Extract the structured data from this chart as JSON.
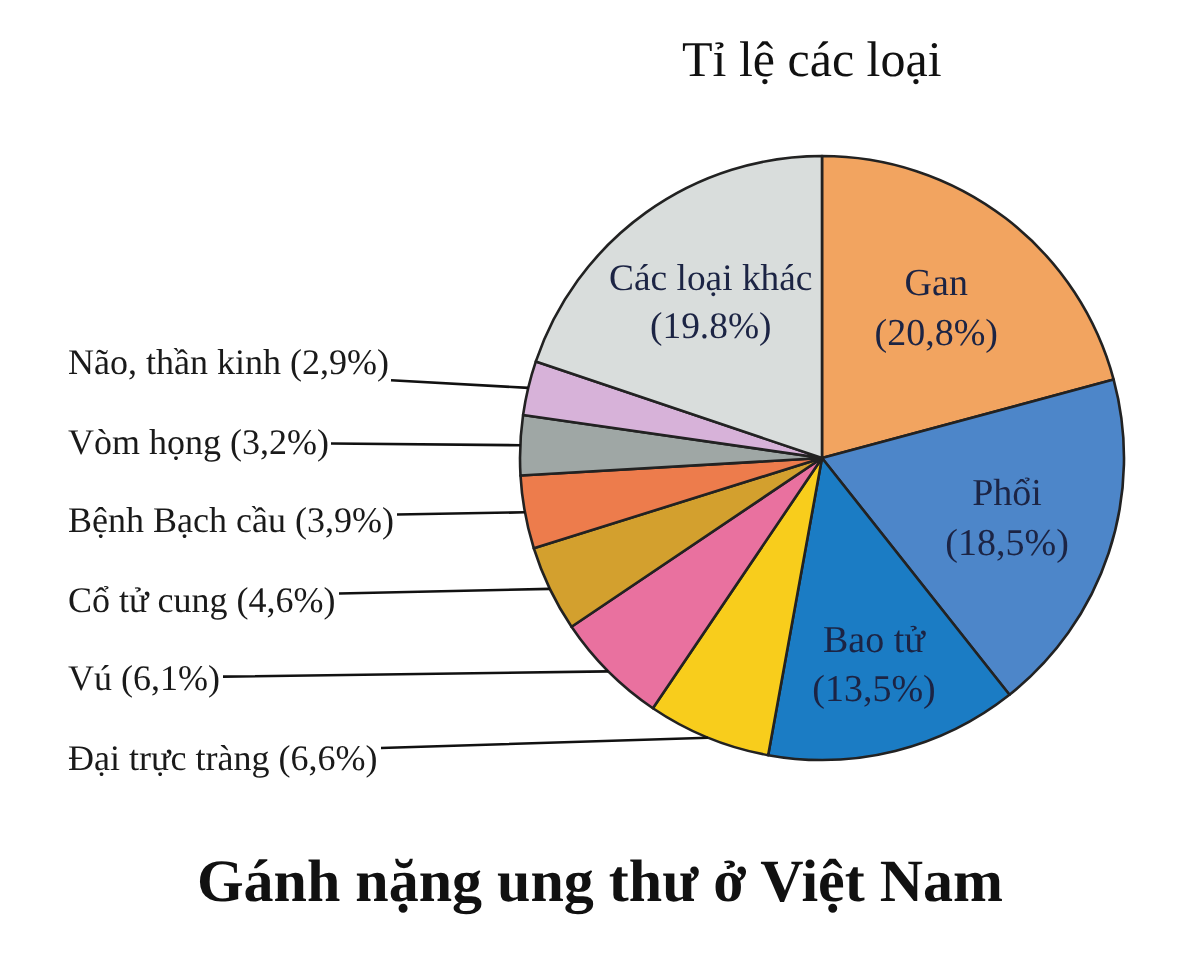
{
  "chart_data": {
    "type": "pie",
    "title": "Gánh nặng ung thư ở Việt Nam",
    "subtitle": "Tỉ lệ các loại",
    "categories": [
      "Gan",
      "Phổi",
      "Bao tử",
      "Đại trực tràng",
      "Vú",
      "Cổ tử cung",
      "Bệnh Bạch cầu",
      "Vòm họng",
      "Não, thần kinh",
      "Các loại khác"
    ],
    "values": [
      20.8,
      18.5,
      13.5,
      6.6,
      6.1,
      4.6,
      3.9,
      3.2,
      2.9,
      19.8
    ],
    "value_labels": [
      "(20,8%)",
      "(18,5%)",
      "(13,5%)",
      "(6,6%)",
      "(6,1%)",
      "(4,6%)",
      "(3,9%)",
      "(3,2%)",
      "(2,9%)",
      "(19.8%)"
    ],
    "colors": [
      "#f2a460",
      "#4d86c9",
      "#1b7cc4",
      "#f8cd1c",
      "#e9719f",
      "#d3a02e",
      "#ed7c4c",
      "#9fa7a5",
      "#d7b2d9",
      "#d9dddc"
    ],
    "legend": false
  }
}
